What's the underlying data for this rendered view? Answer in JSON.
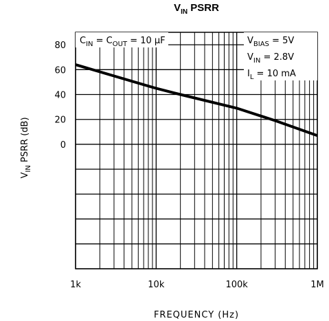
{
  "chart_data": {
    "type": "line",
    "title": [
      "V",
      "IN",
      " PSRR"
    ],
    "xlabel": "FREQUENCY (Hz)",
    "ylabel": [
      "V",
      "IN",
      "  PSRR (dB)"
    ],
    "log_x": true,
    "grid": true,
    "color": "#000000",
    "xlim": [
      1000,
      1000000
    ],
    "xticks": [
      {
        "value": 1000,
        "label": "1k"
      },
      {
        "value": 10000,
        "label": "10k"
      },
      {
        "value": 100000,
        "label": "100k"
      },
      {
        "value": 1000000,
        "label": "1M"
      }
    ],
    "ylim": [
      -100,
      90
    ],
    "yticks": [
      0,
      20,
      40,
      60,
      80
    ],
    "minor_yticks": [
      -100,
      -80,
      -60,
      -40,
      -20
    ],
    "x": [
      1000,
      10000,
      20000,
      100000,
      300000,
      1000000
    ],
    "values": [
      64,
      45,
      40,
      29,
      19,
      7
    ],
    "annotations": [
      [
        [
          "C",
          "IN",
          " = C",
          "OUT",
          " = 10 μF"
        ]
      ],
      [
        [
          "V",
          "BIAS",
          " = 5V"
        ],
        [
          "V",
          "IN",
          " = 2.8V"
        ],
        [
          "I",
          "L",
          " = 10 mA"
        ]
      ]
    ]
  }
}
